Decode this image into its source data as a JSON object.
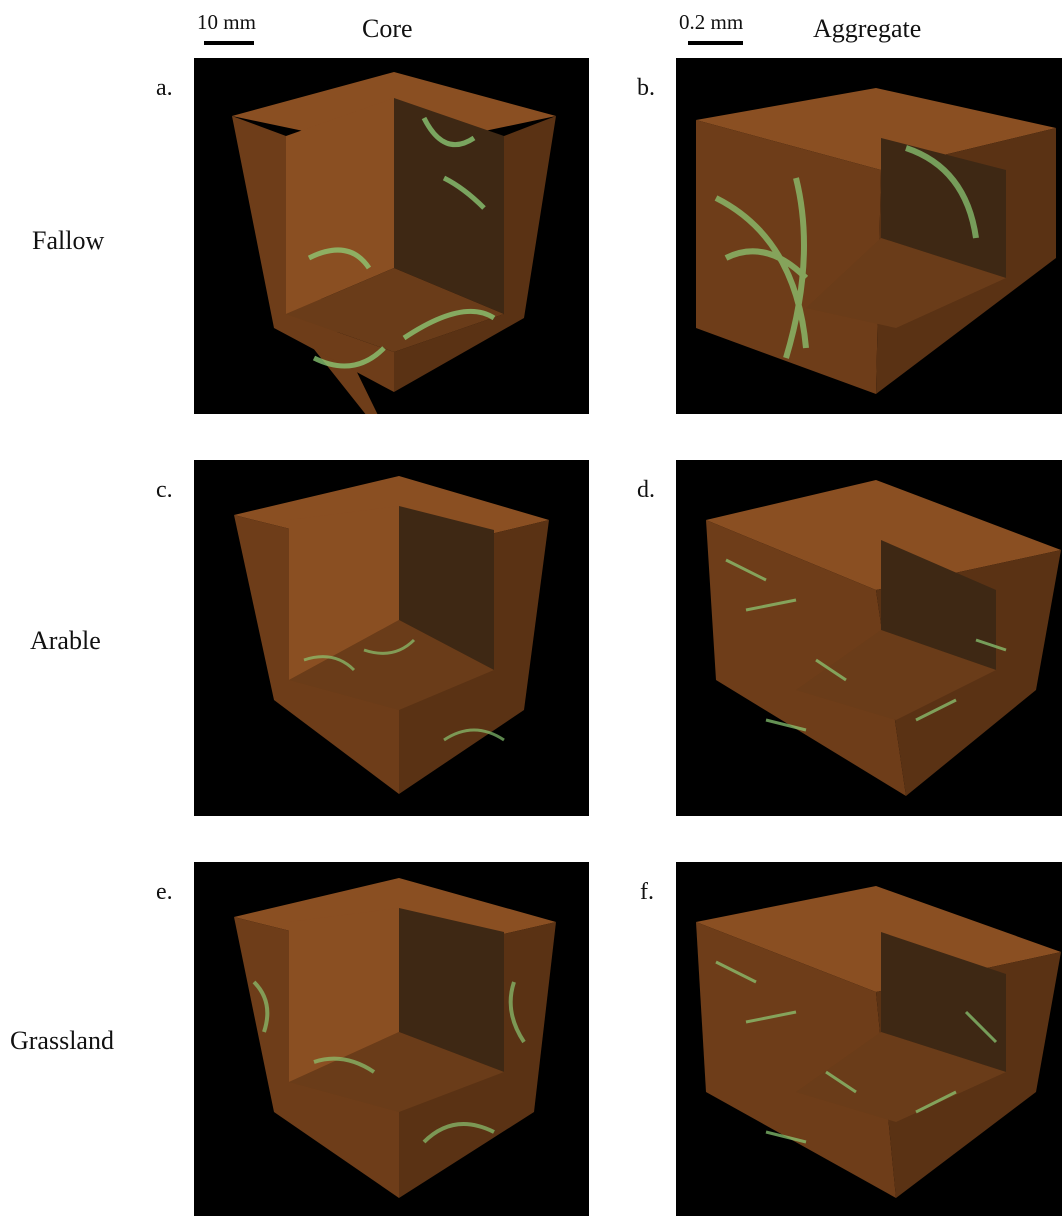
{
  "columns": {
    "core": {
      "heading": "Core",
      "scale_label": "10 mm"
    },
    "aggregate": {
      "heading": "Aggregate",
      "scale_label": "0.2 mm"
    }
  },
  "rows": [
    {
      "label": "Fallow"
    },
    {
      "label": "Arable"
    },
    {
      "label": "Grassland"
    }
  ],
  "panels": [
    {
      "letter": "a.",
      "row": "Fallow",
      "column": "Core"
    },
    {
      "letter": "b.",
      "row": "Fallow",
      "column": "Aggregate"
    },
    {
      "letter": "c.",
      "row": "Arable",
      "column": "Core"
    },
    {
      "letter": "d.",
      "row": "Arable",
      "column": "Aggregate"
    },
    {
      "letter": "e.",
      "row": "Grassland",
      "column": "Core"
    },
    {
      "letter": "f.",
      "row": "Grassland",
      "column": "Aggregate"
    }
  ],
  "colors": {
    "background": "#000000",
    "soil_top": "#8a4f22",
    "soil_left": "#6e3d19",
    "soil_right": "#5a3214",
    "soil_inner_dark": "#3e2814",
    "pore": "#8fcf78"
  }
}
